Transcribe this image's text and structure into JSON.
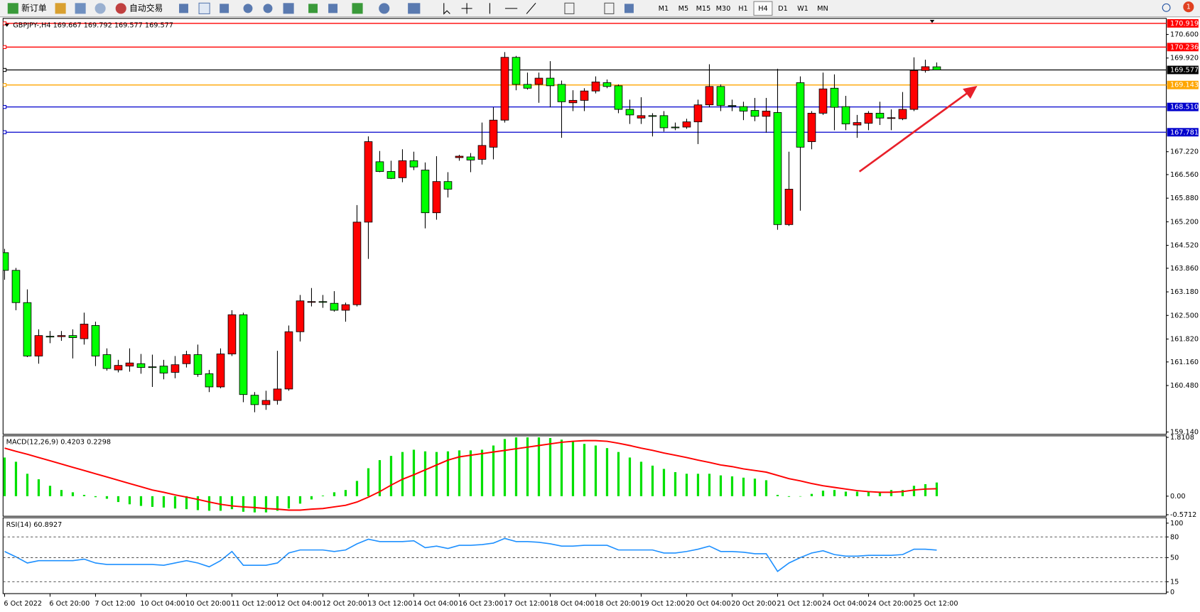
{
  "toolbar": {
    "new_order": "新订单",
    "auto_trading": "自动交易",
    "timeframes": [
      "M1",
      "M5",
      "M15",
      "M30",
      "H1",
      "H4",
      "D1",
      "W1",
      "MN"
    ],
    "selected": "H4",
    "notification_count": "1"
  },
  "chart_data": [
    {
      "type": "candlestick",
      "title": "GBPJPY-,H4 169.667 169.792 169.577 169.577",
      "categories": [
        "6 Oct 2022",
        null,
        null,
        null,
        "6 Oct 20:00",
        null,
        null,
        null,
        "7 Oct 12:00",
        null,
        null,
        null,
        "10 Oct 04:00",
        null,
        null,
        null,
        "10 Oct 20:00",
        null,
        null,
        null,
        "11 Oct 12:00",
        null,
        null,
        null,
        "12 Oct 04:00",
        null,
        null,
        null,
        "12 Oct 20:00",
        null,
        null,
        null,
        "13 Oct 12:00",
        null,
        null,
        null,
        "14 Oct 04:00",
        null,
        null,
        null,
        "16 Oct 23:00",
        null,
        null,
        null,
        "17 Oct 12:00",
        null,
        null,
        null,
        "18 Oct 04:00",
        null,
        null,
        null,
        "18 Oct 20:00",
        null,
        null,
        null,
        "19 Oct 12:00",
        null,
        null,
        null,
        "20 Oct 04:00",
        null,
        null,
        null,
        "20 Oct 20:00",
        null,
        null,
        null,
        "21 Oct 12:00",
        null,
        null,
        null,
        "24 Oct 04:00",
        null,
        null,
        null,
        "24 Oct 20:00",
        null,
        null,
        null,
        "25 Oct 12:00",
        null,
        null
      ],
      "open": [
        164.31,
        163.8,
        162.87,
        161.33,
        161.9,
        161.89,
        161.92,
        161.83,
        162.21,
        161.37,
        160.93,
        161.04,
        161.11,
        161.02,
        161.04,
        160.86,
        161.11,
        161.37,
        160.82,
        160.44,
        161.39,
        162.52,
        160.2,
        159.93,
        160.05,
        160.38,
        162.03,
        162.88,
        162.9,
        162.85,
        162.65,
        162.81,
        165.19,
        166.93,
        166.65,
        166.47,
        166.96,
        166.69,
        165.46,
        166.36,
        167.05,
        167.07,
        167.0,
        167.35,
        168.13,
        169.94,
        169.16,
        169.16,
        169.34,
        169.16,
        168.63,
        168.7,
        168.97,
        169.21,
        169.12,
        168.44,
        168.19,
        168.26,
        168.26,
        167.93,
        167.93,
        168.08,
        168.57,
        169.1,
        168.55,
        168.52,
        168.41,
        168.24,
        168.35,
        165.12,
        169.21,
        167.51,
        168.33,
        169.05,
        168.52,
        167.99,
        168.04,
        168.33,
        168.19,
        168.17,
        168.44,
        169.56,
        169.667
      ],
      "high": [
        164.42,
        163.87,
        163.25,
        162.1,
        162.05,
        162.05,
        162.1,
        162.58,
        162.32,
        161.55,
        161.22,
        161.55,
        161.39,
        161.37,
        161.22,
        161.33,
        161.48,
        161.66,
        160.93,
        161.55,
        162.65,
        162.58,
        160.29,
        160.33,
        161.48,
        162.21,
        163.09,
        163.29,
        163.09,
        163.2,
        162.87,
        165.68,
        167.66,
        167.24,
        166.96,
        167.29,
        167.22,
        166.91,
        167.09,
        166.63,
        167.13,
        167.18,
        168.06,
        168.5,
        170.09,
        169.98,
        169.5,
        169.5,
        169.83,
        169.27,
        168.99,
        169.05,
        169.39,
        169.3,
        169.16,
        168.72,
        168.79,
        168.33,
        168.39,
        168.06,
        168.17,
        168.72,
        169.74,
        169.16,
        168.72,
        168.66,
        168.77,
        168.77,
        169.61,
        167.22,
        169.39,
        168.39,
        169.5,
        169.45,
        168.83,
        168.28,
        168.39,
        168.66,
        168.44,
        168.94,
        169.94,
        169.87,
        169.792
      ],
      "low": [
        163.53,
        162.65,
        161.3,
        161.11,
        161.7,
        161.77,
        161.26,
        161.66,
        161.04,
        160.91,
        160.86,
        160.88,
        160.82,
        160.44,
        160.66,
        160.69,
        161.0,
        160.73,
        160.29,
        160.4,
        161.33,
        160.0,
        159.71,
        159.78,
        159.93,
        160.33,
        161.75,
        162.76,
        162.72,
        162.61,
        162.32,
        162.76,
        164.13,
        166.63,
        166.43,
        166.34,
        166.69,
        165.01,
        165.26,
        165.9,
        166.96,
        166.63,
        166.85,
        167.0,
        168.06,
        168.99,
        169.01,
        168.63,
        168.5,
        167.62,
        168.39,
        168.39,
        168.9,
        169.05,
        168.33,
        168.02,
        168.02,
        167.66,
        167.8,
        167.84,
        167.88,
        167.44,
        168.5,
        168.39,
        168.39,
        168.13,
        168.1,
        167.77,
        164.97,
        165.08,
        165.52,
        167.29,
        168.28,
        167.84,
        167.84,
        167.62,
        167.84,
        167.99,
        167.84,
        168.13,
        168.39,
        169.5,
        169.577
      ],
      "close": [
        163.8,
        162.87,
        161.33,
        161.92,
        161.89,
        161.92,
        161.86,
        162.25,
        161.33,
        160.97,
        161.06,
        161.13,
        161.0,
        161.01,
        160.84,
        161.08,
        161.37,
        160.8,
        160.44,
        161.39,
        162.52,
        160.22,
        159.93,
        160.05,
        160.38,
        162.03,
        162.92,
        162.9,
        162.88,
        162.65,
        162.81,
        165.19,
        167.51,
        166.65,
        166.45,
        166.96,
        166.78,
        165.46,
        166.36,
        166.14,
        167.09,
        166.98,
        167.4,
        168.13,
        169.94,
        169.16,
        169.05,
        169.34,
        169.12,
        168.66,
        168.7,
        168.97,
        169.23,
        169.1,
        168.44,
        168.28,
        168.26,
        168.25,
        167.91,
        167.92,
        168.08,
        168.57,
        169.1,
        168.55,
        168.54,
        168.39,
        168.24,
        168.39,
        165.12,
        166.14,
        167.35,
        168.33,
        169.03,
        168.5,
        168.02,
        168.06,
        168.33,
        168.19,
        168.2,
        168.44,
        169.56,
        169.67,
        169.577
      ],
      "up_color": "#ff0000",
      "down_color": "#00ff00",
      "outline_color": "#000000",
      "ylim": [
        159.074,
        171.063
      ],
      "yticks": [
        {
          "value": 170.6,
          "label": "170.600"
        },
        {
          "value": 169.92,
          "label": "169.920"
        },
        {
          "value": 167.22,
          "label": "167.220"
        },
        {
          "value": 166.56,
          "label": "166.560"
        },
        {
          "value": 165.88,
          "label": "165.880"
        },
        {
          "value": 165.2,
          "label": "165.200"
        },
        {
          "value": 164.52,
          "label": "164.520"
        },
        {
          "value": 163.86,
          "label": "163.860"
        },
        {
          "value": 163.18,
          "label": "163.180"
        },
        {
          "value": 162.5,
          "label": "162.500"
        },
        {
          "value": 161.82,
          "label": "161.820"
        },
        {
          "value": 161.16,
          "label": "161.160"
        },
        {
          "value": 160.48,
          "label": "160.480"
        },
        {
          "value": 159.14,
          "label": "159.140"
        }
      ],
      "levels": [
        {
          "value": 170.919,
          "label": "170.919",
          "color": "#ff0000"
        },
        {
          "value": 170.236,
          "label": "170.236",
          "color": "#ff0000"
        },
        {
          "value": 169.577,
          "label": "169.577",
          "color": "#000000"
        },
        {
          "value": 169.143,
          "label": "169.143",
          "color": "#ffa500"
        },
        {
          "value": 168.51,
          "label": "168.510",
          "color": "#0000cc"
        },
        {
          "value": 167.781,
          "label": "167.781",
          "color": "#0000cc"
        }
      ]
    },
    {
      "type": "combo",
      "title": "MACD(12,26,9) 0.4203 0.2298",
      "series": [
        {
          "style": "bar",
          "color": "#00e000",
          "values": [
            1.19,
            1.06,
            0.69,
            0.52,
            0.32,
            0.19,
            0.12,
            0.04,
            -0.03,
            -0.08,
            -0.18,
            -0.25,
            -0.3,
            -0.33,
            -0.35,
            -0.38,
            -0.4,
            -0.43,
            -0.45,
            -0.45,
            -0.4,
            -0.48,
            -0.5,
            -0.5,
            -0.45,
            -0.38,
            -0.23,
            -0.1,
            0.02,
            0.12,
            0.19,
            0.47,
            0.86,
            1.11,
            1.24,
            1.36,
            1.43,
            1.38,
            1.36,
            1.38,
            1.41,
            1.41,
            1.43,
            1.56,
            1.76,
            1.81,
            1.81,
            1.81,
            1.79,
            1.74,
            1.69,
            1.61,
            1.56,
            1.48,
            1.36,
            1.19,
            1.06,
            0.94,
            0.84,
            0.74,
            0.69,
            0.69,
            0.69,
            0.64,
            0.61,
            0.57,
            0.54,
            0.49,
            0.04,
            -0.02,
            0.0,
            0.07,
            0.17,
            0.19,
            0.14,
            0.14,
            0.14,
            0.14,
            0.19,
            0.19,
            0.32,
            0.37,
            0.4203
          ]
        },
        {
          "style": "line",
          "color": "#ff0000",
          "values": [
            1.48,
            1.38,
            1.29,
            1.19,
            1.09,
            0.99,
            0.89,
            0.79,
            0.69,
            0.59,
            0.49,
            0.39,
            0.29,
            0.19,
            0.12,
            0.04,
            -0.03,
            -0.1,
            -0.18,
            -0.25,
            -0.3,
            -0.33,
            -0.35,
            -0.38,
            -0.4,
            -0.43,
            -0.43,
            -0.4,
            -0.38,
            -0.33,
            -0.28,
            -0.18,
            -0.03,
            0.14,
            0.34,
            0.52,
            0.66,
            0.81,
            0.96,
            1.11,
            1.21,
            1.26,
            1.31,
            1.36,
            1.41,
            1.46,
            1.51,
            1.56,
            1.61,
            1.66,
            1.69,
            1.71,
            1.71,
            1.69,
            1.63,
            1.56,
            1.48,
            1.41,
            1.33,
            1.26,
            1.19,
            1.11,
            1.04,
            0.96,
            0.91,
            0.84,
            0.79,
            0.74,
            0.64,
            0.54,
            0.47,
            0.39,
            0.32,
            0.27,
            0.22,
            0.17,
            0.14,
            0.12,
            0.12,
            0.14,
            0.19,
            0.22,
            0.2298
          ]
        }
      ],
      "ylim": [
        -0.5712,
        1.8108
      ],
      "yticks": [
        1.8108,
        {
          "value": 0,
          "label": "0.00"
        },
        -0.5712
      ]
    },
    {
      "type": "line",
      "title": "RSI(14) 60.8927",
      "color": "#1e90ff",
      "values": [
        58.9,
        51.1,
        42.2,
        45.6,
        45.6,
        45.6,
        45.6,
        47.8,
        42.2,
        40.0,
        40.0,
        40.0,
        40.0,
        40.0,
        38.9,
        42.2,
        45.6,
        42.2,
        36.7,
        45.6,
        58.9,
        38.9,
        38.9,
        38.9,
        42.2,
        56.7,
        61.1,
        61.1,
        61.1,
        58.9,
        61.1,
        70.0,
        76.7,
        73.3,
        73.3,
        73.3,
        74.4,
        64.4,
        66.7,
        63.3,
        67.8,
        67.8,
        68.9,
        71.1,
        77.8,
        73.3,
        73.3,
        72.2,
        70.0,
        66.7,
        66.7,
        67.8,
        67.8,
        67.8,
        61.1,
        61.1,
        61.1,
        61.1,
        56.7,
        56.7,
        58.9,
        62.2,
        66.7,
        58.9,
        58.9,
        57.8,
        55.6,
        55.6,
        30.0,
        42.2,
        50.0,
        56.7,
        60.0,
        54.4,
        52.2,
        52.2,
        53.3,
        53.3,
        53.3,
        54.4,
        62.2,
        62.2,
        60.8927
      ],
      "ylim": [
        0,
        100
      ],
      "yticks": [
        100,
        80,
        50,
        15,
        0
      ],
      "grid": "dashed"
    }
  ]
}
